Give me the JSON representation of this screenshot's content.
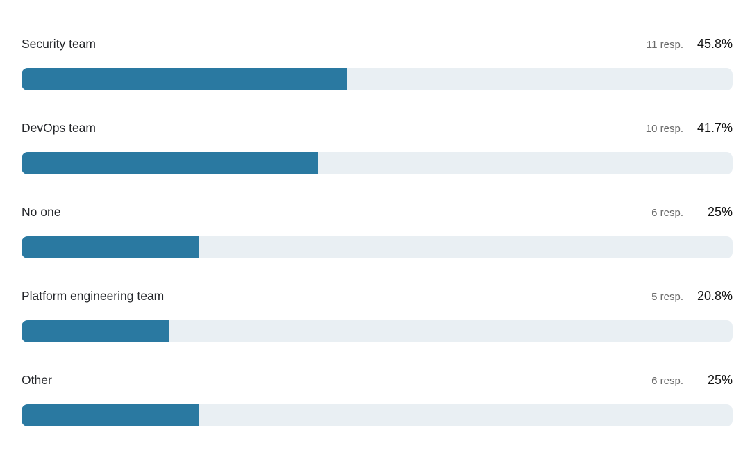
{
  "chart_data": {
    "type": "bar",
    "orientation": "horizontal",
    "title": "",
    "categories": [
      "Security team",
      "DevOps team",
      "No one",
      "Platform engineering team",
      "Other"
    ],
    "values": [
      45.8,
      41.7,
      25,
      20.8,
      25
    ],
    "value_unit": "%",
    "responses": [
      11,
      10,
      6,
      5,
      6
    ],
    "xlim": [
      0,
      100
    ],
    "grid": false,
    "legend": false,
    "bar_color": "#2a79a1",
    "track_color": "#e9eff3"
  },
  "rows": [
    {
      "label": "Security team",
      "resp": "11 resp.",
      "percent": "45.8%",
      "value": 45.8
    },
    {
      "label": "DevOps team",
      "resp": "10 resp.",
      "percent": "41.7%",
      "value": 41.7
    },
    {
      "label": "No one",
      "resp": "6 resp.",
      "percent": "25%",
      "value": 25
    },
    {
      "label": "Platform engineering team",
      "resp": "5 resp.",
      "percent": "20.8%",
      "value": 20.8
    },
    {
      "label": "Other",
      "resp": "6 resp.",
      "percent": "25%",
      "value": 25
    }
  ]
}
